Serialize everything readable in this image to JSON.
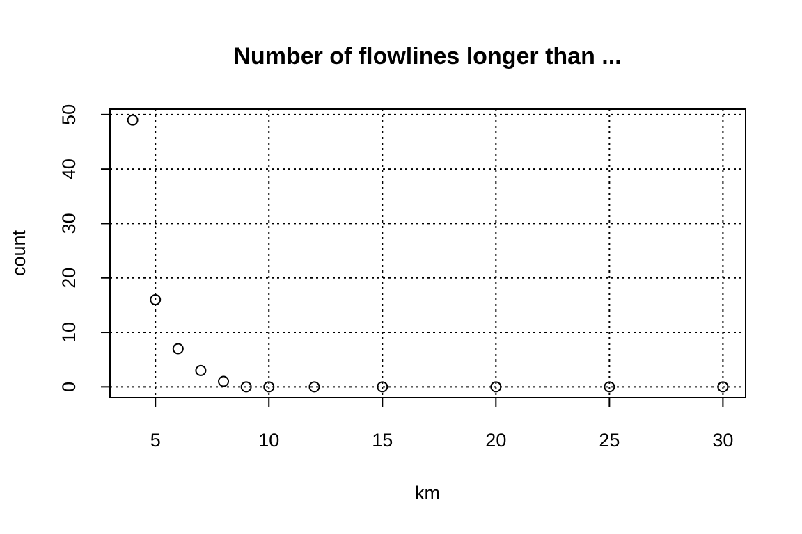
{
  "chart_data": {
    "type": "scatter",
    "title": "Number of flowlines longer than ...",
    "xlabel": "km",
    "ylabel": "count",
    "x": [
      4,
      5,
      6,
      7,
      8,
      9,
      10,
      12,
      15,
      20,
      25,
      30
    ],
    "y": [
      49,
      16,
      7,
      3,
      1,
      0,
      0,
      0,
      0,
      0,
      0,
      0
    ],
    "xlim": [
      3,
      31
    ],
    "ylim": [
      -2,
      51
    ],
    "x_ticks": [
      5,
      10,
      15,
      20,
      25,
      30
    ],
    "y_ticks": [
      0,
      10,
      20,
      30,
      40,
      50
    ],
    "x_tick_labels": [
      "5",
      "10",
      "15",
      "20",
      "25",
      "30"
    ],
    "y_tick_labels": [
      "0",
      "10",
      "20",
      "30",
      "40",
      "50"
    ],
    "grid": true,
    "marker": "open-circle",
    "marker_color": "#000000"
  }
}
